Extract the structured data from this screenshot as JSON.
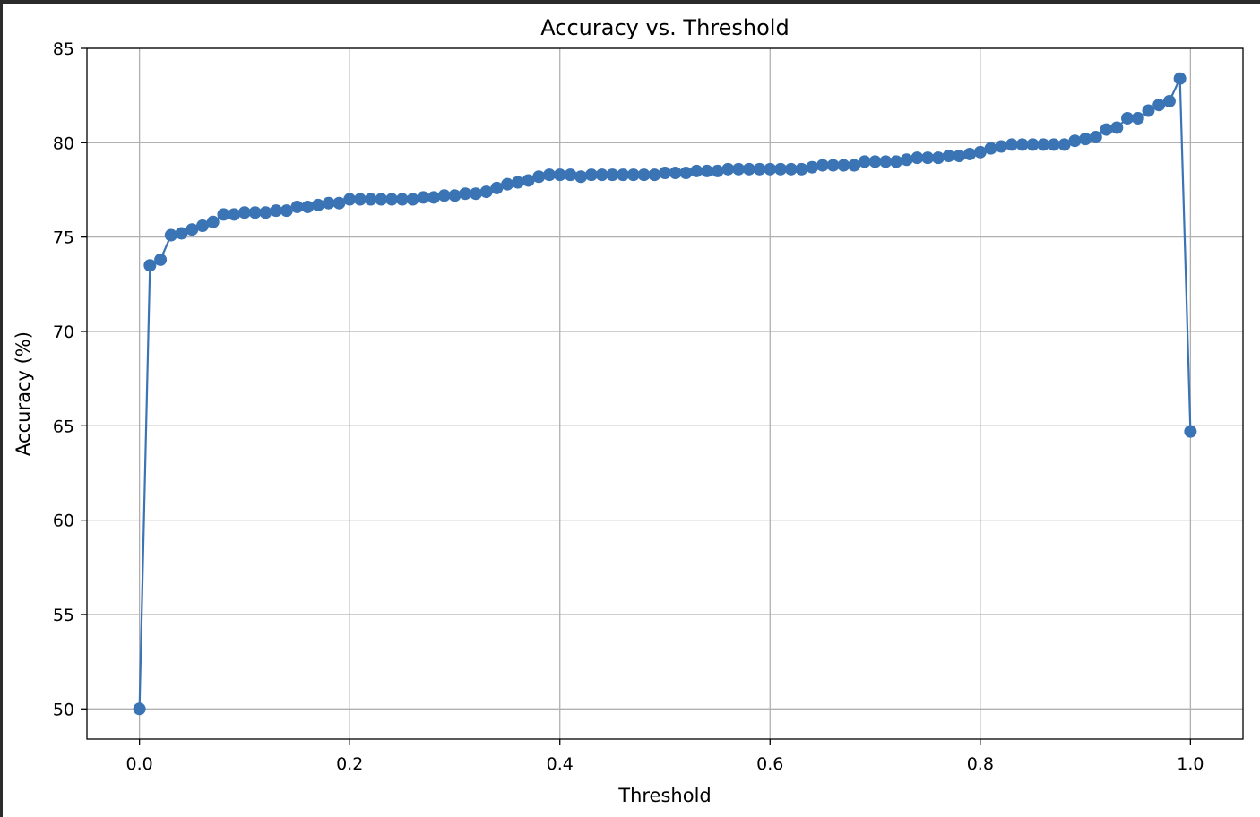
{
  "chart_data": {
    "type": "line",
    "title": "Accuracy vs. Threshold",
    "xlabel": "Threshold",
    "ylabel": "Accuracy (%)",
    "xlim": [
      -0.05,
      1.05
    ],
    "ylim": [
      48.4,
      85
    ],
    "xticks": [
      0.0,
      0.2,
      0.4,
      0.6,
      0.8,
      1.0
    ],
    "xtick_labels": [
      "0.0",
      "0.2",
      "0.4",
      "0.6",
      "0.8",
      "1.0"
    ],
    "yticks": [
      50,
      55,
      60,
      65,
      70,
      75,
      80,
      85
    ],
    "ytick_labels": [
      "50",
      "55",
      "60",
      "65",
      "70",
      "75",
      "80",
      "85"
    ],
    "grid": true,
    "marker": "circle",
    "color": "#3a74b4",
    "x": [
      0.0,
      0.01,
      0.02,
      0.03,
      0.04,
      0.05,
      0.06,
      0.07,
      0.08,
      0.09,
      0.1,
      0.11,
      0.12,
      0.13,
      0.14,
      0.15,
      0.16,
      0.17,
      0.18,
      0.19,
      0.2,
      0.21,
      0.22,
      0.23,
      0.24,
      0.25,
      0.26,
      0.27,
      0.28,
      0.29,
      0.3,
      0.31,
      0.32,
      0.33,
      0.34,
      0.35,
      0.36,
      0.37,
      0.38,
      0.39,
      0.4,
      0.41,
      0.42,
      0.43,
      0.44,
      0.45,
      0.46,
      0.47,
      0.48,
      0.49,
      0.5,
      0.51,
      0.52,
      0.53,
      0.54,
      0.55,
      0.56,
      0.57,
      0.58,
      0.59,
      0.6,
      0.61,
      0.62,
      0.63,
      0.64,
      0.65,
      0.66,
      0.67,
      0.68,
      0.69,
      0.7,
      0.71,
      0.72,
      0.73,
      0.74,
      0.75,
      0.76,
      0.77,
      0.78,
      0.79,
      0.8,
      0.81,
      0.82,
      0.83,
      0.84,
      0.85,
      0.86,
      0.87,
      0.88,
      0.89,
      0.9,
      0.91,
      0.92,
      0.93,
      0.94,
      0.95,
      0.96,
      0.97,
      0.98,
      0.99,
      1.0
    ],
    "y": [
      50.0,
      73.5,
      73.8,
      75.1,
      75.2,
      75.4,
      75.6,
      75.8,
      76.2,
      76.2,
      76.3,
      76.3,
      76.3,
      76.4,
      76.4,
      76.6,
      76.6,
      76.7,
      76.8,
      76.8,
      77.0,
      77.0,
      77.0,
      77.0,
      77.0,
      77.0,
      77.0,
      77.1,
      77.1,
      77.2,
      77.2,
      77.3,
      77.3,
      77.4,
      77.6,
      77.8,
      77.9,
      78.0,
      78.2,
      78.3,
      78.3,
      78.3,
      78.2,
      78.3,
      78.3,
      78.3,
      78.3,
      78.3,
      78.3,
      78.3,
      78.4,
      78.4,
      78.4,
      78.5,
      78.5,
      78.5,
      78.6,
      78.6,
      78.6,
      78.6,
      78.6,
      78.6,
      78.6,
      78.6,
      78.7,
      78.8,
      78.8,
      78.8,
      78.8,
      79.0,
      79.0,
      79.0,
      79.0,
      79.1,
      79.2,
      79.2,
      79.2,
      79.3,
      79.3,
      79.4,
      79.5,
      79.7,
      79.8,
      79.9,
      79.9,
      79.9,
      79.9,
      79.9,
      79.9,
      80.1,
      80.2,
      80.3,
      80.7,
      80.8,
      81.3,
      81.3,
      81.7,
      82.0,
      82.2,
      83.4,
      64.7
    ]
  }
}
